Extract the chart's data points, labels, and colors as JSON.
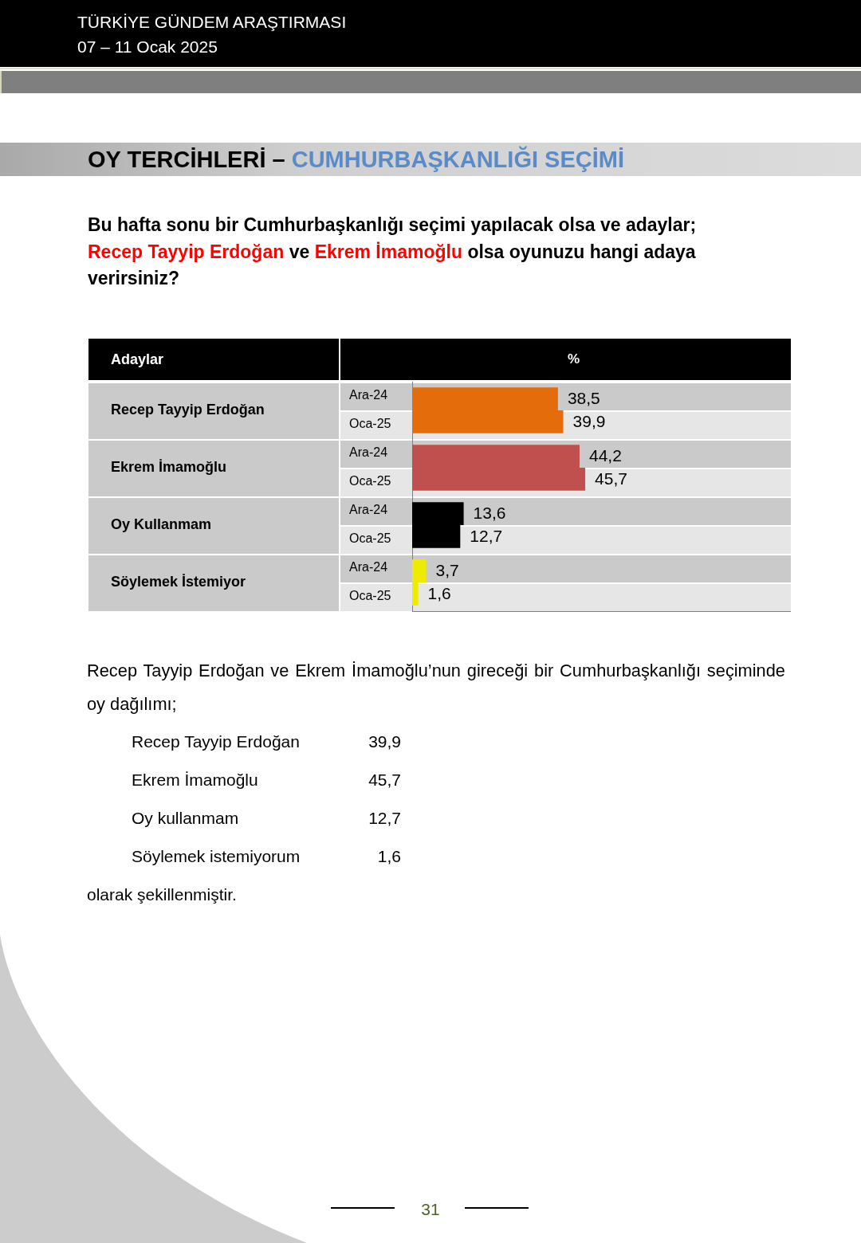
{
  "chart_data": {
    "type": "bar",
    "orientation": "horizontal",
    "title": "OY TERCİHLERİ –",
    "subtitle": "CUMHURBAŞKANLIĞI SEÇİMİ",
    "ylabel": "Adaylar",
    "xlabel": "%",
    "categories": [
      "Recep Tayyip Erdoğan",
      "Ekrem İmamoğlu",
      "Oy Kullanmam",
      "Söylemek İstemiyor"
    ],
    "series": [
      {
        "name": "Ara-24",
        "colors": [
          "#e46c0a",
          "#c0504d",
          "#000000",
          "#eeea00"
        ],
        "values": [
          38.5,
          44.2,
          13.6,
          3.7
        ],
        "value_labels": [
          "38,5",
          "44,2",
          "13,6",
          "3,7"
        ]
      },
      {
        "name": "Oca-25",
        "colors": [
          "#e46c0a",
          "#c0504d",
          "#000000",
          "#eeea00"
        ],
        "values": [
          39.9,
          45.7,
          12.7,
          1.6
        ],
        "value_labels": [
          "39,9",
          "45,7",
          "12,7",
          "1,6"
        ]
      }
    ],
    "xlim": [
      0,
      100
    ],
    "tick_labels": "y",
    "annotations": [
      "TÜRKİYE GÜNDEM ARAŞTIRMASI",
      "07 – 11 Ocak 2025",
      "Bu hafta sonu bir Cumhurbaşkanlığı seçimi yapılacak olsa ve adaylar;",
      "Recep Tayyip Erdoğan",
      "ve",
      "Ekrem İmamoğlu",
      "olsa oyunuzu hangi adaya",
      "verirsiniz?",
      "Recep Tayyip Erdoğan ve Ekrem İmamoğlu’nun gireceği bir Cumhurbaşkanlığı seçiminde oy dağılımı;",
      "Recep Tayyip Erdoğan",
      "39,9",
      "Ekrem İmamoğlu",
      "45,7",
      "Oy kullanmam",
      "12,7",
      "Söylemek istemiyorum",
      "1,6",
      "olarak şekillenmiştir.",
      "31"
    ]
  }
}
